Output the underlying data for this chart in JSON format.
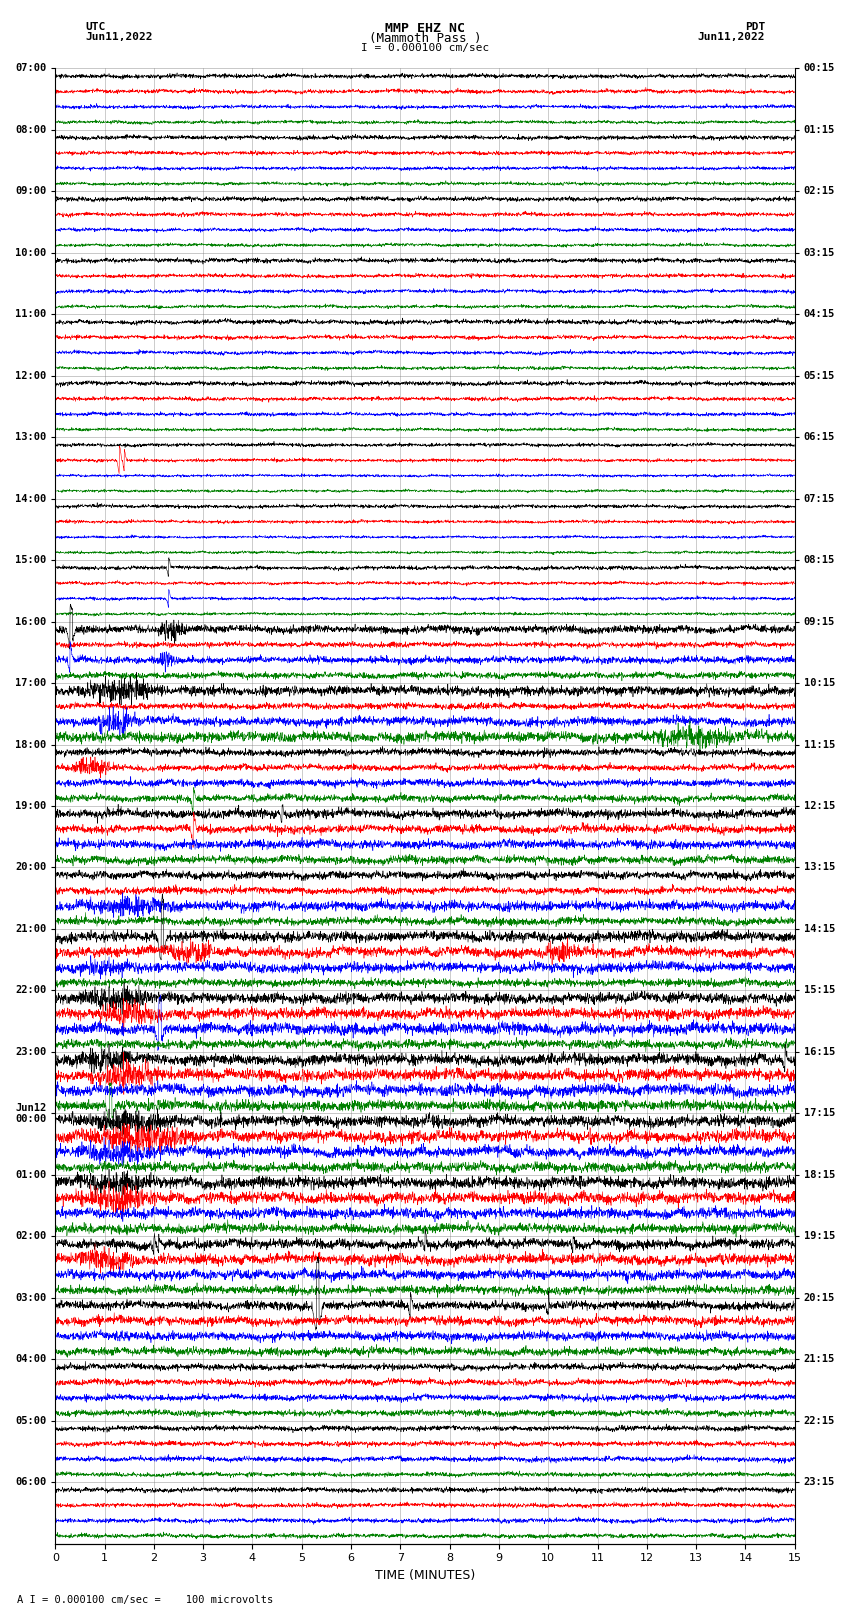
{
  "title_line1": "MMP EHZ NC",
  "title_line2": "(Mammoth Pass )",
  "scale_label": "I = 0.000100 cm/sec",
  "bottom_label": "A I = 0.000100 cm/sec =    100 microvolts",
  "xlabel": "TIME (MINUTES)",
  "left_header_line1": "UTC",
  "left_header_line2": "Jun11,2022",
  "right_header_line1": "PDT",
  "right_header_line2": "Jun11,2022",
  "utc_times": [
    "07:00",
    "08:00",
    "09:00",
    "10:00",
    "11:00",
    "12:00",
    "13:00",
    "14:00",
    "15:00",
    "16:00",
    "17:00",
    "18:00",
    "19:00",
    "20:00",
    "21:00",
    "22:00",
    "23:00",
    "Jun12\n00:00",
    "01:00",
    "02:00",
    "03:00",
    "04:00",
    "05:00",
    "06:00"
  ],
  "pdt_times": [
    "00:15",
    "01:15",
    "02:15",
    "03:15",
    "04:15",
    "05:15",
    "06:15",
    "07:15",
    "08:15",
    "09:15",
    "10:15",
    "11:15",
    "12:15",
    "13:15",
    "14:15",
    "15:15",
    "16:15",
    "17:15",
    "18:15",
    "19:15",
    "20:15",
    "21:15",
    "22:15",
    "23:15"
  ],
  "colors": [
    "black",
    "red",
    "blue",
    "green"
  ],
  "traces_per_row": 4,
  "num_rows": 24,
  "x_min": 0,
  "x_max": 15,
  "x_ticks": [
    0,
    1,
    2,
    3,
    4,
    5,
    6,
    7,
    8,
    9,
    10,
    11,
    12,
    13,
    14,
    15
  ],
  "background_color": "white",
  "n_points": 3000
}
